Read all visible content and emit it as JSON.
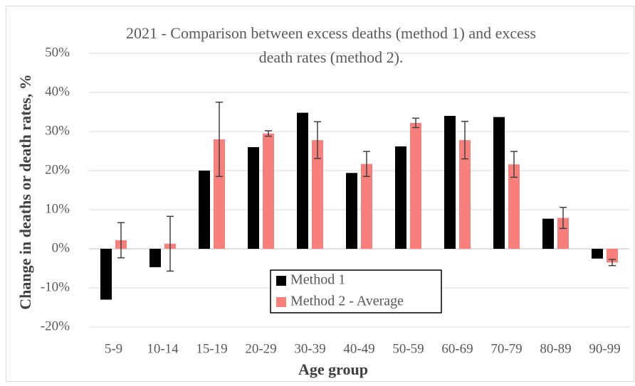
{
  "chart_data": {
    "type": "bar",
    "title": "2021 - Comparison between excess deaths (method 1) and excess death rates (method 2).",
    "x_label": "Age group",
    "y_label": "Change in deaths or death rates, %",
    "categories": [
      "5-9",
      "10-14",
      "15-19",
      "20-29",
      "30-39",
      "40-49",
      "50-59",
      "60-69",
      "70-79",
      "80-89",
      "90-99"
    ],
    "series": [
      {
        "name": "Method 1",
        "color": "#000000",
        "values": [
          -13,
          -4.7,
          20,
          26,
          34.8,
          19.4,
          26.2,
          34,
          33.7,
          7.7,
          -2.5
        ]
      },
      {
        "name": "Method 2 - Average",
        "color": "#f8807c",
        "values": [
          2.2,
          1.3,
          28,
          29.5,
          27.8,
          21.7,
          32.2,
          27.8,
          21.6,
          7.9,
          -3.5
        ],
        "errors": [
          4.5,
          7,
          9.5,
          0.7,
          4.7,
          3.2,
          1.2,
          4.8,
          3.3,
          2.7,
          0.8
        ]
      }
    ],
    "ylim": [
      -20,
      50
    ],
    "yticks": [
      {
        "value": -20,
        "label": "-20%"
      },
      {
        "value": -10,
        "label": "-10%"
      },
      {
        "value": 0,
        "label": "0%"
      },
      {
        "value": 10,
        "label": "10%"
      },
      {
        "value": 20,
        "label": "20%"
      },
      {
        "value": 30,
        "label": "30%"
      },
      {
        "value": 40,
        "label": "40%"
      },
      {
        "value": 50,
        "label": "50%"
      }
    ],
    "grid": true,
    "legend": "bottom-center"
  }
}
